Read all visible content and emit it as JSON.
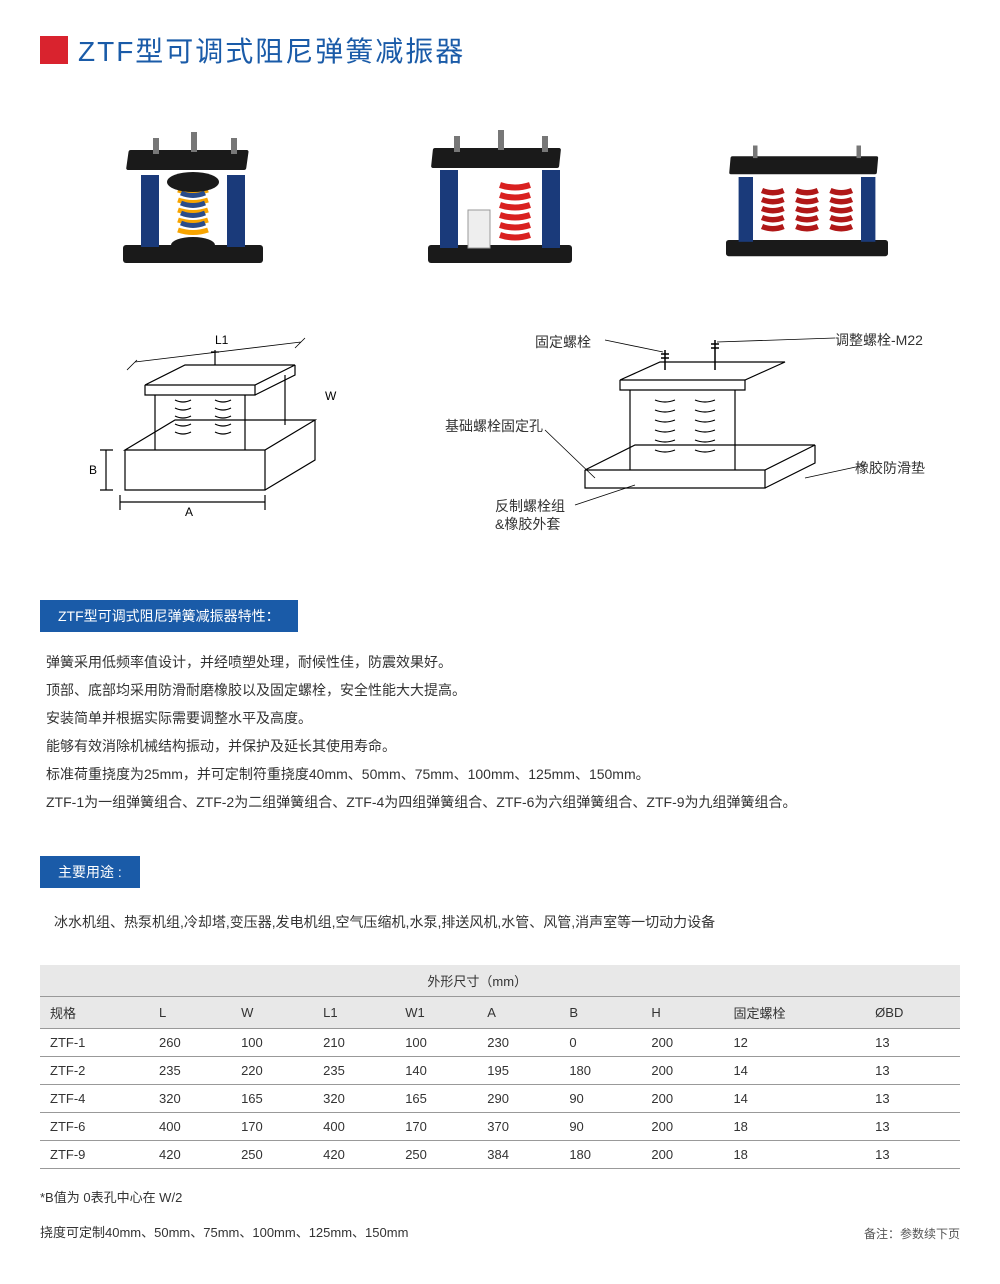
{
  "title": "ZTF型可调式阻尼弹簧减振器",
  "diagrams": {
    "d1_labels": {
      "L1": "L1",
      "W": "W",
      "B": "B",
      "A": "A"
    },
    "d2_labels": {
      "fixed_bolt": "固定螺栓",
      "adjust_bolt": "调整螺栓-M22",
      "base_hole": "基础螺栓固定孔",
      "rubber_pad": "橡胶防滑垫",
      "counter_bolt": "反制螺栓组",
      "rubber_sleeve": "&橡胶外套"
    }
  },
  "section1_title": "ZTF型可调式阻尼弹簧减振器特性：",
  "features": [
    "弹簧采用低频率值设计，并经喷塑处理，耐候性佳，防震效果好。",
    "顶部、底部均采用防滑耐磨橡胶以及固定螺栓，安全性能大大提高。",
    "安装简单并根据实际需要调整水平及高度。",
    "能够有效消除机械结构振动，并保护及延长其使用寿命。",
    "标准荷重挠度为25mm，并可定制符重挠度40mm、50mm、75mm、100mm、125mm、150mm。",
    "ZTF-1为一组弹簧组合、ZTF-2为二组弹簧组合、ZTF-4为四组弹簧组合、ZTF-6为六组弹簧组合、ZTF-9为九组弹簧组合。"
  ],
  "section2_title": "主要用途 :",
  "usage": "冰水机组、热泵机组,冷却塔,变压器,发电机组,空气压缩机,水泵,排送风机,水管、风管,消声室等一切动力设备",
  "table": {
    "group_header": "外形尺寸（mm）",
    "columns": [
      "规格",
      "L",
      "W",
      "L1",
      "W1",
      "A",
      "B",
      "H",
      "固定螺栓",
      "ØBD"
    ],
    "rows": [
      [
        "ZTF-1",
        "260",
        "100",
        "210",
        "100",
        "230",
        "0",
        "200",
        "12",
        "13"
      ],
      [
        "ZTF-2",
        "235",
        "220",
        "235",
        "140",
        "195",
        "180",
        "200",
        "14",
        "13"
      ],
      [
        "ZTF-4",
        "320",
        "165",
        "320",
        "165",
        "290",
        "90",
        "200",
        "14",
        "13"
      ],
      [
        "ZTF-6",
        "400",
        "170",
        "400",
        "170",
        "370",
        "90",
        "200",
        "18",
        "13"
      ],
      [
        "ZTF-9",
        "420",
        "250",
        "420",
        "250",
        "384",
        "180",
        "200",
        "18",
        "13"
      ]
    ]
  },
  "footnote1": "*B值为 0表孔中心在  W/2",
  "footnote2": "挠度可定制40mm、50mm、75mm、100mm、125mm、150mm",
  "remark": "备注：参数续下页",
  "colors": {
    "accent_red": "#d9232e",
    "accent_blue": "#1a5ba8",
    "spring1a": "#f7a400",
    "spring1b": "#2b4c8a",
    "spring2": "#d92020",
    "spring3": "#b01818",
    "frame": "#1a3a7a",
    "plate": "#1a1a1a"
  }
}
